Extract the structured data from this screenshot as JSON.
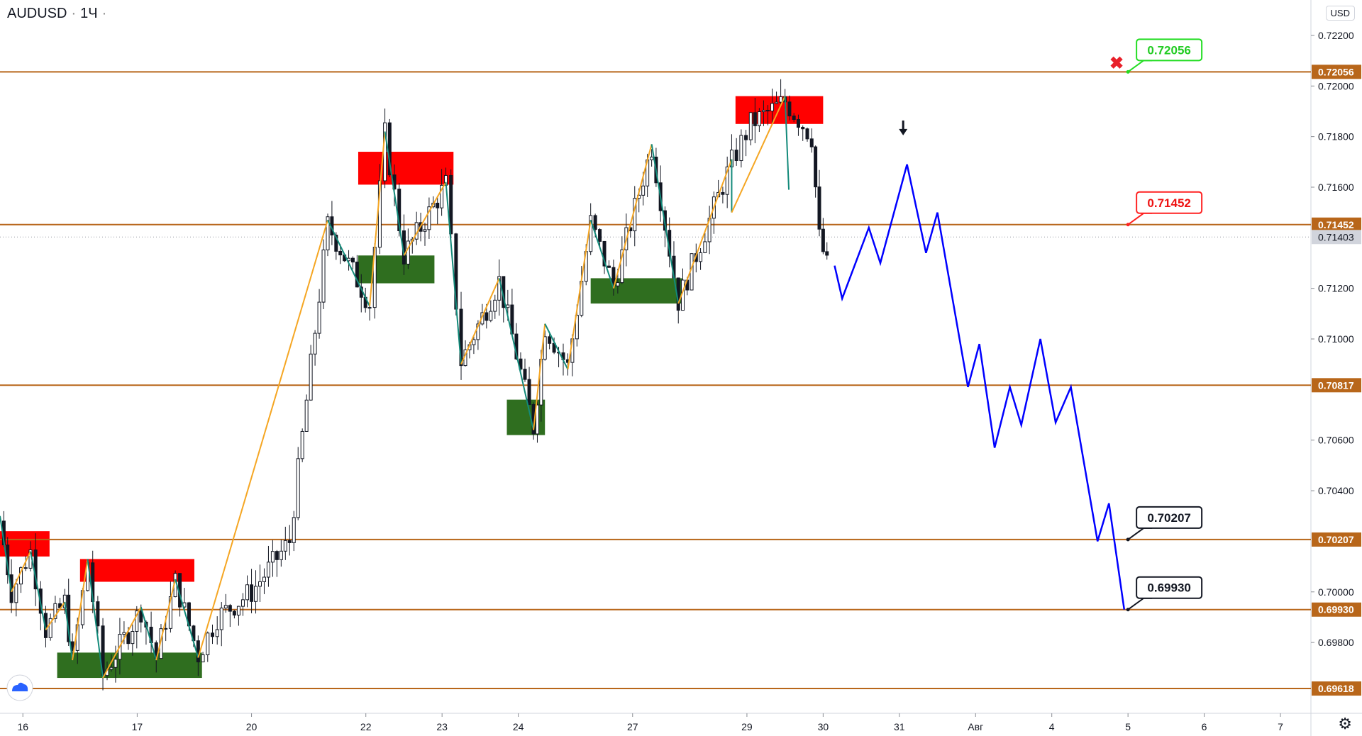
{
  "header": {
    "symbol": "AUDUSD",
    "interval": "1Ч"
  },
  "currency_label": "USD",
  "settings_icon": "gear-icon",
  "logo_icon": "tradingview-cloud-icon",
  "colors": {
    "level": "#b8661a",
    "resistance_zone": "#ff0000",
    "support_zone": "#2f6e1f",
    "forecast": "#0000ff",
    "wave_up": "#f5a623",
    "wave_down": "#138a7a",
    "candle": "#131722"
  },
  "chart_data": {
    "type": "candlestick",
    "y_axis": {
      "min": 0.6952,
      "max": 0.7234,
      "tick_labels": [
        "0.72200",
        "0.72000",
        "0.71800",
        "0.71600",
        "0.71200",
        "0.71000",
        "0.70600",
        "0.70400",
        "0.70000",
        "0.69800"
      ],
      "ticks": [
        0.722,
        0.72,
        0.718,
        0.716,
        0.712,
        0.71,
        0.706,
        0.704,
        0.7,
        0.698
      ]
    },
    "x_axis": {
      "tick_labels": [
        "16",
        "17",
        "20",
        "22",
        "23",
        "24",
        "27",
        "29",
        "30",
        "31",
        "Авг",
        "4",
        "5",
        "6",
        "7"
      ],
      "tick_positions": [
        0.5,
        3.5,
        6.5,
        9.5,
        11.5,
        13.5,
        16.5,
        19.5,
        21.5,
        23.5,
        25.5,
        27.5,
        29.5,
        31.5,
        33.5
      ],
      "range": [
        -0.1,
        34.3
      ]
    },
    "horizontal_levels": [
      {
        "value": 0.72056,
        "label": "0.72056"
      },
      {
        "value": 0.71452,
        "label": "0.71452"
      },
      {
        "value": 0.70817,
        "label": "0.70817"
      },
      {
        "value": 0.70207,
        "label": "0.70207"
      },
      {
        "value": 0.6993,
        "label": "0.69930"
      },
      {
        "value": 0.69618,
        "label": "0.69618"
      }
    ],
    "last_price": {
      "value": 0.71403,
      "label": "0.71403"
    },
    "callouts": [
      {
        "label": "0.72056",
        "value": 0.72056,
        "x": 29.5,
        "color": "#22dd22",
        "text_color": "#22cc22"
      },
      {
        "label": "0.71452",
        "value": 0.71452,
        "x": 29.5,
        "color": "#ff2222",
        "text_color": "#ee1111"
      },
      {
        "label": "0.70207",
        "value": 0.70207,
        "x": 29.5,
        "color": "#131722",
        "text_color": "#131722"
      },
      {
        "label": "0.69930",
        "value": 0.6993,
        "x": 29.5,
        "color": "#131722",
        "text_color": "#131722"
      }
    ],
    "cancel_marker": {
      "x": 29.2,
      "value": 0.7209,
      "symbol": "✖"
    },
    "arrow_marker": {
      "x": 23.6,
      "value": 0.7183,
      "symbol": "🡇"
    },
    "resistance_zones": [
      {
        "x0": -0.1,
        "x1": 1.2,
        "y0": 0.7014,
        "y1": 0.7024
      },
      {
        "x0": 2.0,
        "x1": 5.0,
        "y0": 0.7004,
        "y1": 0.7013
      },
      {
        "x0": 9.3,
        "x1": 11.8,
        "y0": 0.7161,
        "y1": 0.7174
      },
      {
        "x0": 19.2,
        "x1": 21.5,
        "y0": 0.7185,
        "y1": 0.7196
      }
    ],
    "support_zones": [
      {
        "x0": 1.4,
        "x1": 5.2,
        "y0": 0.6966,
        "y1": 0.6976
      },
      {
        "x0": 9.3,
        "x1": 11.3,
        "y0": 0.7122,
        "y1": 0.7133
      },
      {
        "x0": 13.2,
        "x1": 14.2,
        "y0": 0.7062,
        "y1": 0.7076
      },
      {
        "x0": 15.4,
        "x1": 17.8,
        "y0": 0.7114,
        "y1": 0.7124
      }
    ],
    "wave_path": [
      [
        -0.1,
        0.703
      ],
      [
        0.2,
        0.7
      ],
      [
        0.7,
        0.7016
      ],
      [
        1.1,
        0.6985
      ],
      [
        1.6,
        0.6996
      ],
      [
        1.8,
        0.6973
      ],
      [
        2.2,
        0.7013
      ],
      [
        2.6,
        0.6966
      ],
      [
        3.6,
        0.6994
      ],
      [
        4.0,
        0.6973
      ],
      [
        4.5,
        0.7005
      ],
      [
        5.1,
        0.6974
      ],
      [
        8.5,
        0.7147
      ],
      [
        9.6,
        0.7113
      ],
      [
        10.0,
        0.7182
      ],
      [
        10.5,
        0.7133
      ],
      [
        11.6,
        0.7162
      ],
      [
        12.0,
        0.709
      ],
      [
        13.0,
        0.7124
      ],
      [
        13.9,
        0.7064
      ],
      [
        14.2,
        0.7106
      ],
      [
        14.8,
        0.7088
      ],
      [
        15.4,
        0.7147
      ],
      [
        16.0,
        0.712
      ],
      [
        17.0,
        0.7177
      ],
      [
        17.7,
        0.7114
      ],
      [
        19.1,
        0.7171
      ],
      [
        19.1,
        0.715
      ],
      [
        20.5,
        0.7196
      ],
      [
        20.6,
        0.7159
      ]
    ],
    "forecast_path": [
      [
        21.8,
        0.7129
      ],
      [
        22.0,
        0.7116
      ],
      [
        22.7,
        0.7144
      ],
      [
        23.0,
        0.713
      ],
      [
        23.7,
        0.7169
      ],
      [
        24.2,
        0.7134
      ],
      [
        24.5,
        0.715
      ],
      [
        25.3,
        0.7081
      ],
      [
        25.6,
        0.7098
      ],
      [
        26.0,
        0.7057
      ],
      [
        26.4,
        0.7081
      ],
      [
        26.7,
        0.7066
      ],
      [
        27.2,
        0.71
      ],
      [
        27.6,
        0.7067
      ],
      [
        28.0,
        0.7081
      ],
      [
        28.7,
        0.702
      ],
      [
        29.0,
        0.7035
      ],
      [
        29.4,
        0.6993
      ]
    ],
    "candle_path": [
      [
        -0.1,
        0.7028
      ],
      [
        0.2,
        0.7
      ],
      [
        0.7,
        0.7016
      ],
      [
        1.1,
        0.6985
      ],
      [
        1.6,
        0.6996
      ],
      [
        1.8,
        0.6973
      ],
      [
        2.2,
        0.7012
      ],
      [
        2.6,
        0.6967
      ],
      [
        3.6,
        0.6993
      ],
      [
        4.0,
        0.6974
      ],
      [
        4.5,
        0.7004
      ],
      [
        5.1,
        0.6975
      ],
      [
        5.6,
        0.699
      ],
      [
        6.5,
        0.7
      ],
      [
        7.5,
        0.702
      ],
      [
        8.5,
        0.7145
      ],
      [
        9.6,
        0.7114
      ],
      [
        10.0,
        0.7181
      ],
      [
        10.5,
        0.7133
      ],
      [
        11.6,
        0.7161
      ],
      [
        12.0,
        0.7091
      ],
      [
        13.0,
        0.7123
      ],
      [
        13.9,
        0.7065
      ],
      [
        14.2,
        0.7105
      ],
      [
        14.8,
        0.7089
      ],
      [
        15.4,
        0.7146
      ],
      [
        16.0,
        0.7121
      ],
      [
        17.0,
        0.7176
      ],
      [
        17.7,
        0.7115
      ],
      [
        19.1,
        0.717
      ],
      [
        19.6,
        0.7185
      ],
      [
        20.5,
        0.7194
      ],
      [
        21.2,
        0.718
      ],
      [
        21.4,
        0.714
      ],
      [
        21.6,
        0.7129
      ]
    ]
  }
}
